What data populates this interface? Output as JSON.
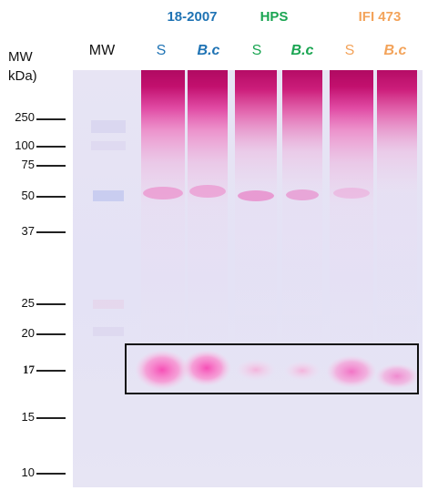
{
  "axis": {
    "title_line1": "MW",
    "title_line2": "kDa)"
  },
  "markers": [
    "250",
    "100",
    "75",
    "50",
    "37",
    "25",
    "20",
    "17",
    "15",
    "10"
  ],
  "ladder_label": "MW",
  "groups": [
    {
      "name": "18-2007",
      "color": "#1f73b4"
    },
    {
      "name": "HPS",
      "color": "#1aa552"
    },
    {
      "name": "IFI 473",
      "color": "#f3a35a"
    }
  ],
  "lanes": [
    {
      "label": "S",
      "color": "#1f73b4"
    },
    {
      "label": "B.c",
      "color": "#1f73b4"
    },
    {
      "label": "S",
      "color": "#1aa552"
    },
    {
      "label": "B.c",
      "color": "#1aa552"
    },
    {
      "label": "S",
      "color": "#f3a35a"
    },
    {
      "label": "B.c",
      "color": "#f3a35a"
    }
  ],
  "colors": {
    "stain": "#d6187e",
    "gel": "#e6e4f4",
    "box": "#111111"
  }
}
